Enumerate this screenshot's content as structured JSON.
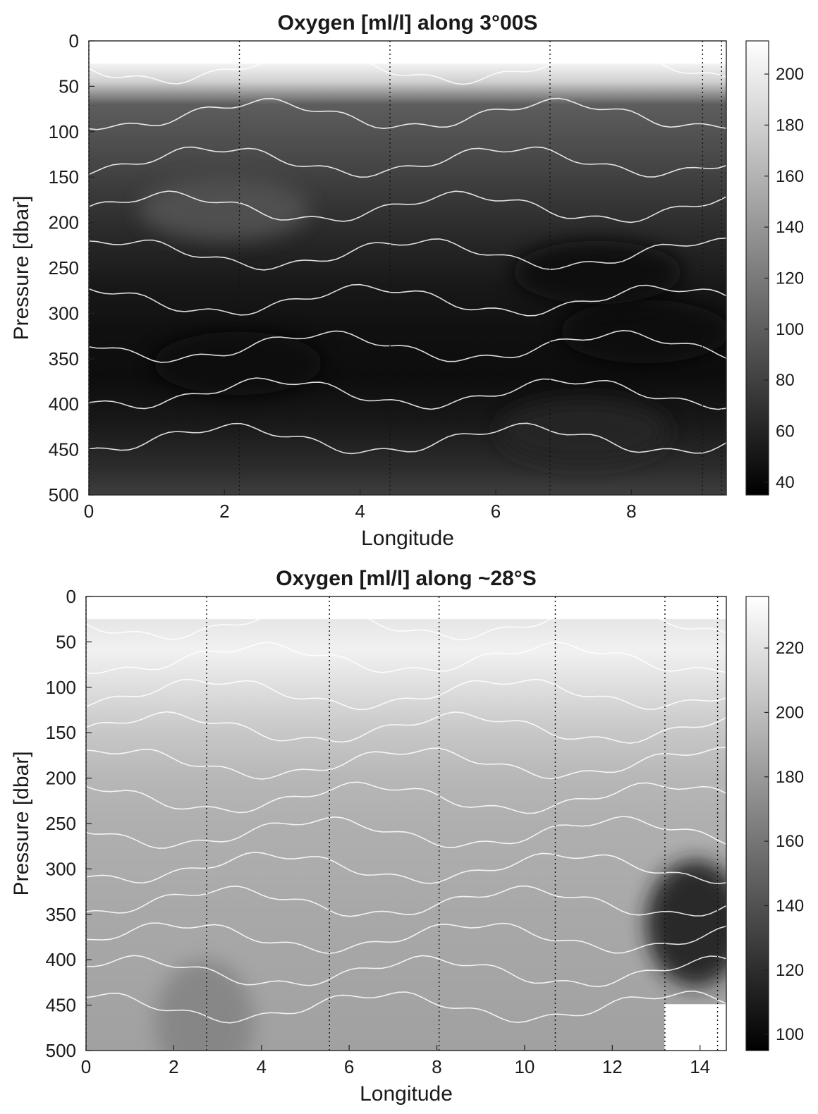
{
  "chart_data": [
    {
      "type": "heatmap",
      "title": "Oxygen [ml/l] along 3°00S",
      "xlabel": "Longitude",
      "ylabel": "Pressure [dbar]",
      "xlim": [
        0,
        9.4
      ],
      "ylim": [
        500,
        0
      ],
      "y_reversed": true,
      "xticks": [
        0,
        2,
        4,
        6,
        8
      ],
      "yticks": [
        0,
        50,
        100,
        150,
        200,
        250,
        300,
        350,
        400,
        450,
        500
      ],
      "colorbar": {
        "range": [
          35,
          213
        ],
        "ticks": [
          40,
          60,
          80,
          100,
          120,
          140,
          160,
          180,
          200
        ],
        "colormap": "gray"
      },
      "station_longitudes": [
        0,
        2.22,
        4.44,
        6.8,
        9.05,
        9.33
      ],
      "depth_profile": {
        "pressure": [
          25,
          45,
          70,
          120,
          170,
          220,
          270,
          320,
          370,
          420,
          470,
          500
        ],
        "oxygen": [
          205,
          180,
          100,
          88,
          75,
          62,
          52,
          46,
          44,
          52,
          66,
          78
        ]
      },
      "features": [
        {
          "label": "low-oxygen core",
          "lon": 2.2,
          "pressure": 355,
          "value": 40
        },
        {
          "label": "low-oxygen core",
          "lon": 8.2,
          "pressure": 320,
          "value": 42
        },
        {
          "label": "low-oxygen core",
          "lon": 7.5,
          "pressure": 255,
          "value": 40
        },
        {
          "label": "oxygen maximum",
          "lon": 2.0,
          "pressure": 185,
          "value": 92
        },
        {
          "label": "oxygen maximum",
          "lon": 7.3,
          "pressure": 430,
          "value": 62
        }
      ]
    },
    {
      "type": "heatmap",
      "title": "Oxygen [ml/l] along ~28°S",
      "xlabel": "Longitude",
      "ylabel": "Pressure [dbar]",
      "xlim": [
        0,
        14.6
      ],
      "ylim": [
        500,
        0
      ],
      "y_reversed": true,
      "xticks": [
        0,
        2,
        4,
        6,
        8,
        10,
        12,
        14
      ],
      "yticks": [
        0,
        50,
        100,
        150,
        200,
        250,
        300,
        350,
        400,
        450,
        500
      ],
      "colorbar": {
        "range": [
          95,
          236
        ],
        "ticks": [
          100,
          120,
          140,
          160,
          180,
          200,
          220
        ],
        "colormap": "gray"
      },
      "station_longitudes": [
        0,
        2.75,
        5.55,
        8.05,
        10.7,
        13.2,
        14.4
      ],
      "depth_profile": {
        "pressure": [
          25,
          60,
          100,
          150,
          200,
          250,
          300,
          350,
          400,
          450,
          500
        ],
        "oxygen": [
          222,
          228,
          218,
          205,
          196,
          192,
          190,
          188,
          187,
          185,
          184
        ]
      },
      "features": [
        {
          "label": "oxygen minimum",
          "lon": 2.7,
          "pressure": 470,
          "value": 168
        },
        {
          "label": "strong gradient",
          "lon": 13.9,
          "pressure": 360,
          "value": 110
        },
        {
          "label": "no data",
          "lon": 13.8,
          "pressure": 480,
          "value": null
        }
      ]
    }
  ]
}
